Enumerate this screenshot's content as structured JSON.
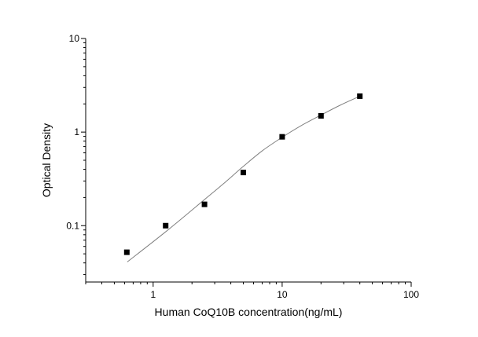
{
  "chart_data": {
    "type": "scatter",
    "title": "",
    "xlabel": "Human CoQ10B concentration(ng/mL)",
    "ylabel": "Optical Density",
    "xscale": "log",
    "yscale": "log",
    "xlim": [
      0.3,
      100
    ],
    "ylim": [
      0.025,
      10
    ],
    "xticks": [
      1,
      10,
      100
    ],
    "xtick_labels": [
      "1",
      "10",
      "100"
    ],
    "yticks": [
      0.1,
      1,
      10
    ],
    "ytick_labels": [
      "0.1",
      "1",
      "10"
    ],
    "grid": false,
    "legend": "none",
    "series": [
      {
        "type": "scatter",
        "marker": "square",
        "color": "#000000",
        "x": [
          0.625,
          1.25,
          2.5,
          5,
          10,
          20,
          40
        ],
        "y": [
          0.052,
          0.1,
          0.169,
          0.37,
          0.89,
          1.49,
          2.42
        ]
      },
      {
        "type": "line",
        "color": "#808080",
        "x": [
          0.63,
          1.25,
          2.5,
          3.5,
          5,
          7,
          10,
          14,
          20,
          28,
          40
        ],
        "y": [
          0.041,
          0.086,
          0.19,
          0.28,
          0.43,
          0.63,
          0.88,
          1.17,
          1.52,
          1.93,
          2.42
        ]
      }
    ]
  }
}
